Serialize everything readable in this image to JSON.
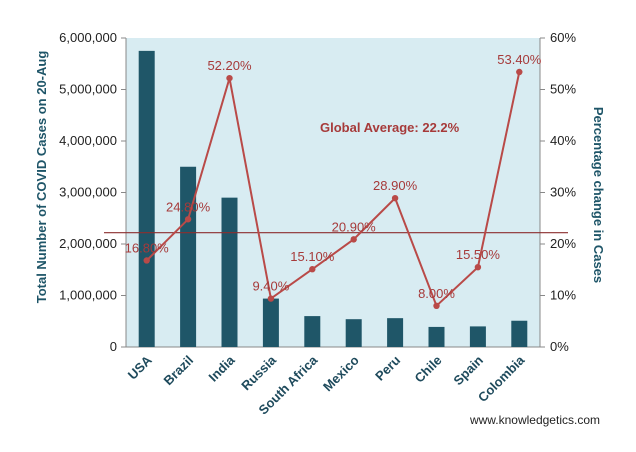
{
  "chart_data": {
    "type": "bar",
    "categories": [
      "USA",
      "Brazil",
      "India",
      "Russia",
      "South Africa",
      "Mexico",
      "Peru",
      "Chile",
      "Spain",
      "Colombia"
    ],
    "series": [
      {
        "name": "Total Number of COVID Cases on 20-Aug",
        "type": "bar",
        "axis": "left",
        "values": [
          5750000,
          3500000,
          2900000,
          940000,
          600000,
          540000,
          560000,
          390000,
          400000,
          510000
        ]
      },
      {
        "name": "Percentage change in Cases",
        "type": "line",
        "axis": "right",
        "values": [
          16.8,
          24.8,
          52.2,
          9.4,
          15.1,
          20.9,
          28.9,
          8.0,
          15.5,
          53.4
        ],
        "labels": [
          "16.80%",
          "24.80%",
          "52.20%",
          "9.40%",
          "15.10%",
          "20.90%",
          "28.90%",
          "8.00%",
          "15.50%",
          "53.40%"
        ]
      }
    ],
    "ylabel": "Total Number of COVID Cases on 20-Aug",
    "y2label": "Percentage change in Cases",
    "ylim": [
      0,
      6000000
    ],
    "y2lim": [
      0,
      60
    ],
    "yticks": [
      "0",
      "1,000,000",
      "2,000,000",
      "3,000,000",
      "4,000,000",
      "5,000,000",
      "6,000,000"
    ],
    "y2ticks": [
      "0%",
      "10%",
      "20%",
      "30%",
      "40%",
      "50%",
      "60%"
    ],
    "reference_line": {
      "label": "Global Average: 22.2%",
      "value": 22.2
    },
    "credit": "www.knowledgetics.com",
    "colors": {
      "bar": "#1f5668",
      "line": "#b94a48",
      "plot_bg": "#d8ecf2",
      "avg_line": "#8c2f2f"
    }
  }
}
